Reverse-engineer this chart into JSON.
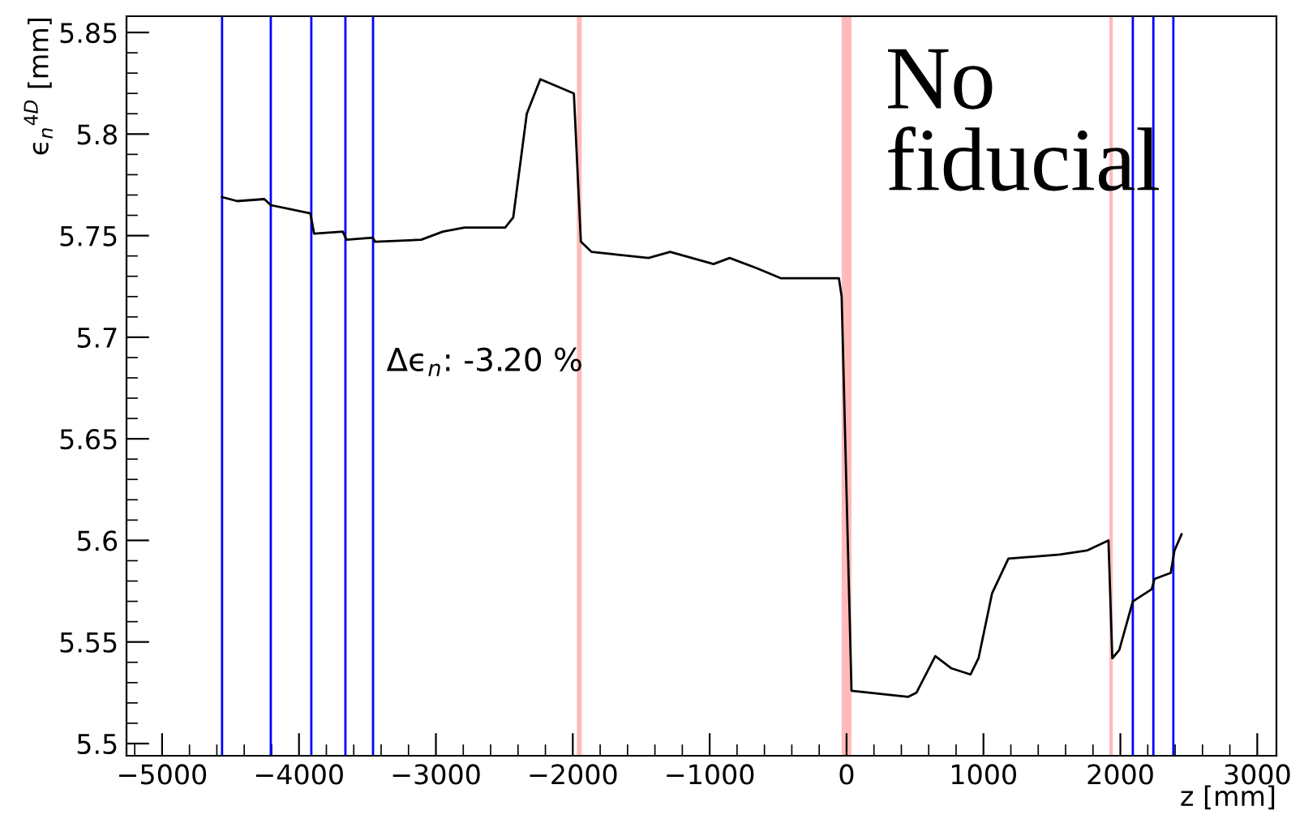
{
  "chart_data": {
    "type": "line",
    "xlabel": "z [mm]",
    "ylabel": "ϵ$_{n}$$^{4D}$ [mm]",
    "x": [
      -4562,
      -4451,
      -4253,
      -4206,
      -3917,
      -3890,
      -3680,
      -3653,
      -3463,
      -3443,
      -3107,
      -2949,
      -2791,
      -2494,
      -2435,
      -2336,
      -2237,
      -1992,
      -1941,
      -1862,
      -1723,
      -1447,
      -1289,
      -1130,
      -972,
      -854,
      -656,
      -478,
      -56,
      -36,
      36,
      451,
      510,
      648,
      767,
      905,
      964,
      1063,
      1182,
      1557,
      1755,
      1913,
      1941,
      1992,
      2091,
      2229,
      2249,
      2368,
      2395,
      2447
    ],
    "series": [
      {
        "color": "#000000",
        "values": [
          5.769,
          5.767,
          5.768,
          5.765,
          5.761,
          5.751,
          5.752,
          5.748,
          5.749,
          5.747,
          5.748,
          5.752,
          5.754,
          5.754,
          5.759,
          5.81,
          5.827,
          5.82,
          5.747,
          5.742,
          5.741,
          5.739,
          5.742,
          5.739,
          5.736,
          5.739,
          5.734,
          5.729,
          5.729,
          5.72,
          5.526,
          5.523,
          5.525,
          5.543,
          5.537,
          5.534,
          5.542,
          5.574,
          5.591,
          5.593,
          5.595,
          5.6,
          5.542,
          5.546,
          5.57,
          5.576,
          5.581,
          5.584,
          5.595,
          5.603
        ]
      }
    ],
    "xlim": [
      -5260,
      3140
    ],
    "ylim": [
      5.494,
      5.858
    ],
    "xticks": [
      -5000,
      -4000,
      -3000,
      -2000,
      -1000,
      0,
      1000,
      2000,
      3000
    ],
    "yticks": [
      5.5,
      5.55,
      5.6,
      5.65,
      5.7,
      5.75,
      5.8,
      5.85
    ],
    "grid": false,
    "legend": false,
    "marker": "none",
    "line_style": "solid",
    "ref_lines": [
      {
        "axis": "x",
        "value": -4562,
        "color": "#0000ff"
      },
      {
        "axis": "x",
        "value": -4206,
        "color": "#0000ff"
      },
      {
        "axis": "x",
        "value": -3910,
        "color": "#0000ff"
      },
      {
        "axis": "x",
        "value": -3661,
        "color": "#0000ff"
      },
      {
        "axis": "x",
        "value": -3459,
        "color": "#0000ff"
      },
      {
        "axis": "x",
        "value": 2091,
        "color": "#0000ff"
      },
      {
        "axis": "x",
        "value": 2241,
        "color": "#0000ff"
      },
      {
        "axis": "x",
        "value": 2387,
        "color": "#0000ff"
      }
    ],
    "bands": [
      {
        "axis": "x",
        "from": -1970,
        "to": -1935,
        "color": "#ffb3b3"
      },
      {
        "axis": "x",
        "from": -36,
        "to": 36,
        "color": "#ffb3b3"
      },
      {
        "axis": "x",
        "from": 1920,
        "to": 1945,
        "color": "#ffb3b3"
      }
    ],
    "annotations": [
      "Δϵ$_{n}$: -3.20 %",
      "No\nfiducial"
    ]
  }
}
